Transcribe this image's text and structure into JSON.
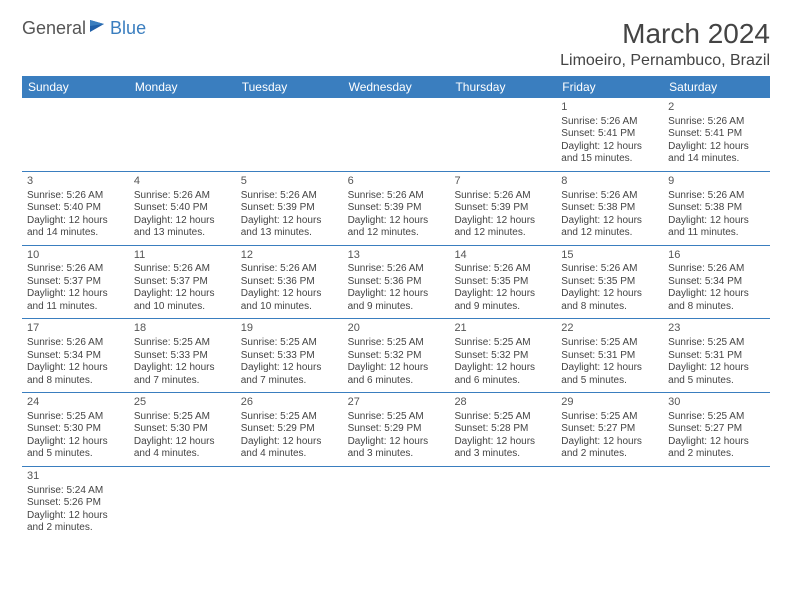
{
  "logo": {
    "text1": "General",
    "text2": "Blue"
  },
  "title": "March 2024",
  "location": "Limoeiro, Pernambuco, Brazil",
  "colors": {
    "header_bg": "#3a7ebf",
    "header_text": "#ffffff",
    "row_border": "#3a7ebf",
    "body_text": "#444444",
    "logo_blue": "#3a7ebf"
  },
  "day_headers": [
    "Sunday",
    "Monday",
    "Tuesday",
    "Wednesday",
    "Thursday",
    "Friday",
    "Saturday"
  ],
  "weeks": [
    [
      null,
      null,
      null,
      null,
      null,
      {
        "n": "1",
        "sr": "5:26 AM",
        "ss": "5:41 PM",
        "dl": "12 hours and 15 minutes."
      },
      {
        "n": "2",
        "sr": "5:26 AM",
        "ss": "5:41 PM",
        "dl": "12 hours and 14 minutes."
      }
    ],
    [
      {
        "n": "3",
        "sr": "5:26 AM",
        "ss": "5:40 PM",
        "dl": "12 hours and 14 minutes."
      },
      {
        "n": "4",
        "sr": "5:26 AM",
        "ss": "5:40 PM",
        "dl": "12 hours and 13 minutes."
      },
      {
        "n": "5",
        "sr": "5:26 AM",
        "ss": "5:39 PM",
        "dl": "12 hours and 13 minutes."
      },
      {
        "n": "6",
        "sr": "5:26 AM",
        "ss": "5:39 PM",
        "dl": "12 hours and 12 minutes."
      },
      {
        "n": "7",
        "sr": "5:26 AM",
        "ss": "5:39 PM",
        "dl": "12 hours and 12 minutes."
      },
      {
        "n": "8",
        "sr": "5:26 AM",
        "ss": "5:38 PM",
        "dl": "12 hours and 12 minutes."
      },
      {
        "n": "9",
        "sr": "5:26 AM",
        "ss": "5:38 PM",
        "dl": "12 hours and 11 minutes."
      }
    ],
    [
      {
        "n": "10",
        "sr": "5:26 AM",
        "ss": "5:37 PM",
        "dl": "12 hours and 11 minutes."
      },
      {
        "n": "11",
        "sr": "5:26 AM",
        "ss": "5:37 PM",
        "dl": "12 hours and 10 minutes."
      },
      {
        "n": "12",
        "sr": "5:26 AM",
        "ss": "5:36 PM",
        "dl": "12 hours and 10 minutes."
      },
      {
        "n": "13",
        "sr": "5:26 AM",
        "ss": "5:36 PM",
        "dl": "12 hours and 9 minutes."
      },
      {
        "n": "14",
        "sr": "5:26 AM",
        "ss": "5:35 PM",
        "dl": "12 hours and 9 minutes."
      },
      {
        "n": "15",
        "sr": "5:26 AM",
        "ss": "5:35 PM",
        "dl": "12 hours and 8 minutes."
      },
      {
        "n": "16",
        "sr": "5:26 AM",
        "ss": "5:34 PM",
        "dl": "12 hours and 8 minutes."
      }
    ],
    [
      {
        "n": "17",
        "sr": "5:26 AM",
        "ss": "5:34 PM",
        "dl": "12 hours and 8 minutes."
      },
      {
        "n": "18",
        "sr": "5:25 AM",
        "ss": "5:33 PM",
        "dl": "12 hours and 7 minutes."
      },
      {
        "n": "19",
        "sr": "5:25 AM",
        "ss": "5:33 PM",
        "dl": "12 hours and 7 minutes."
      },
      {
        "n": "20",
        "sr": "5:25 AM",
        "ss": "5:32 PM",
        "dl": "12 hours and 6 minutes."
      },
      {
        "n": "21",
        "sr": "5:25 AM",
        "ss": "5:32 PM",
        "dl": "12 hours and 6 minutes."
      },
      {
        "n": "22",
        "sr": "5:25 AM",
        "ss": "5:31 PM",
        "dl": "12 hours and 5 minutes."
      },
      {
        "n": "23",
        "sr": "5:25 AM",
        "ss": "5:31 PM",
        "dl": "12 hours and 5 minutes."
      }
    ],
    [
      {
        "n": "24",
        "sr": "5:25 AM",
        "ss": "5:30 PM",
        "dl": "12 hours and 5 minutes."
      },
      {
        "n": "25",
        "sr": "5:25 AM",
        "ss": "5:30 PM",
        "dl": "12 hours and 4 minutes."
      },
      {
        "n": "26",
        "sr": "5:25 AM",
        "ss": "5:29 PM",
        "dl": "12 hours and 4 minutes."
      },
      {
        "n": "27",
        "sr": "5:25 AM",
        "ss": "5:29 PM",
        "dl": "12 hours and 3 minutes."
      },
      {
        "n": "28",
        "sr": "5:25 AM",
        "ss": "5:28 PM",
        "dl": "12 hours and 3 minutes."
      },
      {
        "n": "29",
        "sr": "5:25 AM",
        "ss": "5:27 PM",
        "dl": "12 hours and 2 minutes."
      },
      {
        "n": "30",
        "sr": "5:25 AM",
        "ss": "5:27 PM",
        "dl": "12 hours and 2 minutes."
      }
    ],
    [
      {
        "n": "31",
        "sr": "5:24 AM",
        "ss": "5:26 PM",
        "dl": "12 hours and 2 minutes."
      },
      null,
      null,
      null,
      null,
      null,
      null
    ]
  ],
  "labels": {
    "sunrise_prefix": "Sunrise: ",
    "sunset_prefix": "Sunset: ",
    "daylight_prefix": "Daylight: "
  }
}
